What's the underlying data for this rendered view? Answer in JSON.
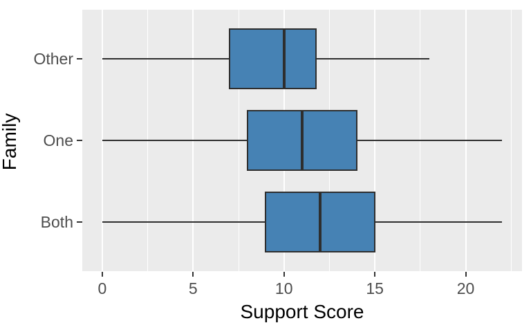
{
  "chart_data": {
    "type": "boxplot",
    "orientation": "horizontal",
    "title": "",
    "xlabel": "Support Score",
    "ylabel": "Family",
    "x_ticks": [
      0,
      5,
      10,
      15,
      20
    ],
    "x_minor_ticks": [
      2.5,
      7.5,
      12.5,
      17.5,
      22.5
    ],
    "xlim": [
      -1.1,
      23.1
    ],
    "ylim": [
      0.4,
      3.6
    ],
    "box_width": 0.75,
    "grid": "major-and-minor, white on gray panel",
    "legend": "none",
    "series": [
      {
        "category": "Other",
        "position": 3,
        "whisker_min": 0,
        "q1": 7,
        "median": 10,
        "q3": 11.75,
        "whisker_max": 18
      },
      {
        "category": "One",
        "position": 2,
        "whisker_min": 0,
        "q1": 8,
        "median": 11,
        "q3": 14,
        "whisker_max": 22
      },
      {
        "category": "Both",
        "position": 1,
        "whisker_min": 0,
        "q1": 9,
        "median": 12,
        "q3": 15,
        "whisker_max": 22
      }
    ],
    "colors": {
      "box_fill": "#4682b4",
      "box_stroke": "#2e2e2e",
      "panel_background": "#ebebeb",
      "gridline": "#ffffff",
      "axis_text": "#4d4d4d",
      "axis_title": "#000000",
      "tick_mark": "#333333"
    }
  }
}
